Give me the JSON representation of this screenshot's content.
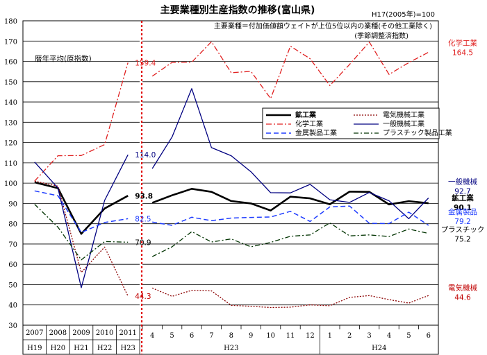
{
  "chart_data": {
    "type": "line",
    "title": "主要業種別生産指数の推移(富山県)",
    "base_note": "H17(2005年)=100",
    "subtitle_line1": "主要業種＝付加価値額ウェイトが上位5位以内の業種(その他工業除く)",
    "subtitle_line2": "(季節調整済指数)",
    "annual_label": "暦年平均(原指数)",
    "ylim": [
      30,
      180
    ],
    "yticks": [
      30,
      40,
      50,
      60,
      70,
      80,
      90,
      100,
      110,
      120,
      130,
      140,
      150,
      160,
      170,
      180
    ],
    "annual": {
      "years": [
        "2007",
        "2008",
        "2009",
        "2010",
        "2011"
      ],
      "eras": [
        "H19",
        "H20",
        "H21",
        "H22",
        "H23"
      ]
    },
    "monthly": {
      "months": [
        "4",
        "5",
        "6",
        "7",
        "8",
        "9",
        "10",
        "11",
        "12",
        "1",
        "2",
        "3",
        "4",
        "5",
        "6"
      ],
      "groups": [
        {
          "label": "H23",
          "count": 9
        },
        {
          "label": "H24",
          "count": 6
        }
      ]
    },
    "series": [
      {
        "name": "鉱工業",
        "color": "#000000",
        "dash": "",
        "width": 2.6,
        "annual": [
          100.4,
          97.5,
          75,
          87.5,
          93.8
        ],
        "monthly": [
          90.3,
          94,
          97.2,
          95.7,
          91.2,
          90,
          86.5,
          93.3,
          92.5,
          89.6,
          95.8,
          95.7,
          89.5,
          91.1,
          90.1
        ],
        "annual_end_label": "93.8",
        "monthly_end_label": "鉱工業",
        "monthly_end_value_label": "90.1",
        "label_color": "#000000"
      },
      {
        "name": "電気機械工業",
        "color": "#8b0000",
        "dash": "2,2",
        "width": 1.3,
        "annual": [
          101,
          98.5,
          56,
          68.5,
          44.3
        ],
        "monthly": [
          48.3,
          44.2,
          47.2,
          46.9,
          39.8,
          39.3,
          38.7,
          38.9,
          40,
          39.6,
          43.7,
          44.6,
          42.6,
          40.9,
          44.6
        ],
        "annual_end_label": "44.3",
        "monthly_end_label": "電気機械",
        "monthly_end_value_label": "44.6",
        "label_color": "#c00000"
      },
      {
        "name": "化学工業",
        "color": "#e02020",
        "dash": "8,3,2,3",
        "width": 1.3,
        "annual": [
          101,
          113.5,
          113.6,
          119,
          159.4
        ],
        "monthly": [
          152.7,
          159.5,
          159.6,
          169.7,
          154.4,
          155.1,
          141.7,
          167.5,
          161.3,
          148.1,
          158.5,
          169.5,
          153.6,
          159.4,
          164.5
        ],
        "annual_end_label": "159.4",
        "monthly_end_label": "化学工業",
        "monthly_end_value_label": "164.5",
        "label_color": "#e02020"
      },
      {
        "name": "一般機械工業",
        "color": "#000080",
        "dash": "",
        "width": 1.3,
        "annual": [
          110.4,
          97.6,
          48.5,
          91.5,
          114.0
        ],
        "monthly": [
          107.2,
          122.7,
          146.6,
          117.5,
          113.5,
          105.6,
          95.3,
          95.2,
          99.4,
          91.8,
          90.5,
          95.4,
          91.3,
          82.5,
          92.7
        ],
        "annual_end_label": "114.0",
        "monthly_end_label": "一般機械",
        "monthly_end_value_label": "92.7",
        "label_color": "#000080"
      },
      {
        "name": "金属製品工業",
        "color": "#1e3cff",
        "dash": "7,4",
        "width": 1.5,
        "annual": [
          96.2,
          93.8,
          75.7,
          80.6,
          82.5
        ],
        "monthly": [
          80.8,
          79.2,
          83.2,
          81.5,
          82.8,
          83.1,
          83.3,
          86.1,
          81.1,
          88.3,
          88.7,
          80.2,
          80.1,
          85.7,
          79.2
        ],
        "annual_end_label": "82.5",
        "monthly_end_label": "金属製品",
        "monthly_end_value_label": "79.2",
        "label_color": "#1e3cff"
      },
      {
        "name": "プラスチック製品工業",
        "color": "#003300",
        "dash": "7,3,2,3",
        "width": 1.3,
        "annual": [
          89.6,
          78.3,
          62.2,
          71.2,
          70.9
        ],
        "monthly": [
          63.8,
          68.6,
          76.1,
          71,
          72.5,
          68.6,
          70.8,
          73.8,
          74.5,
          80.4,
          74,
          74.5,
          73.7,
          77.4,
          75.2
        ],
        "annual_end_label": "70.9",
        "monthly_end_label": "プラスチック",
        "monthly_end_value_label": "75.2",
        "label_color": "#000000"
      }
    ]
  }
}
